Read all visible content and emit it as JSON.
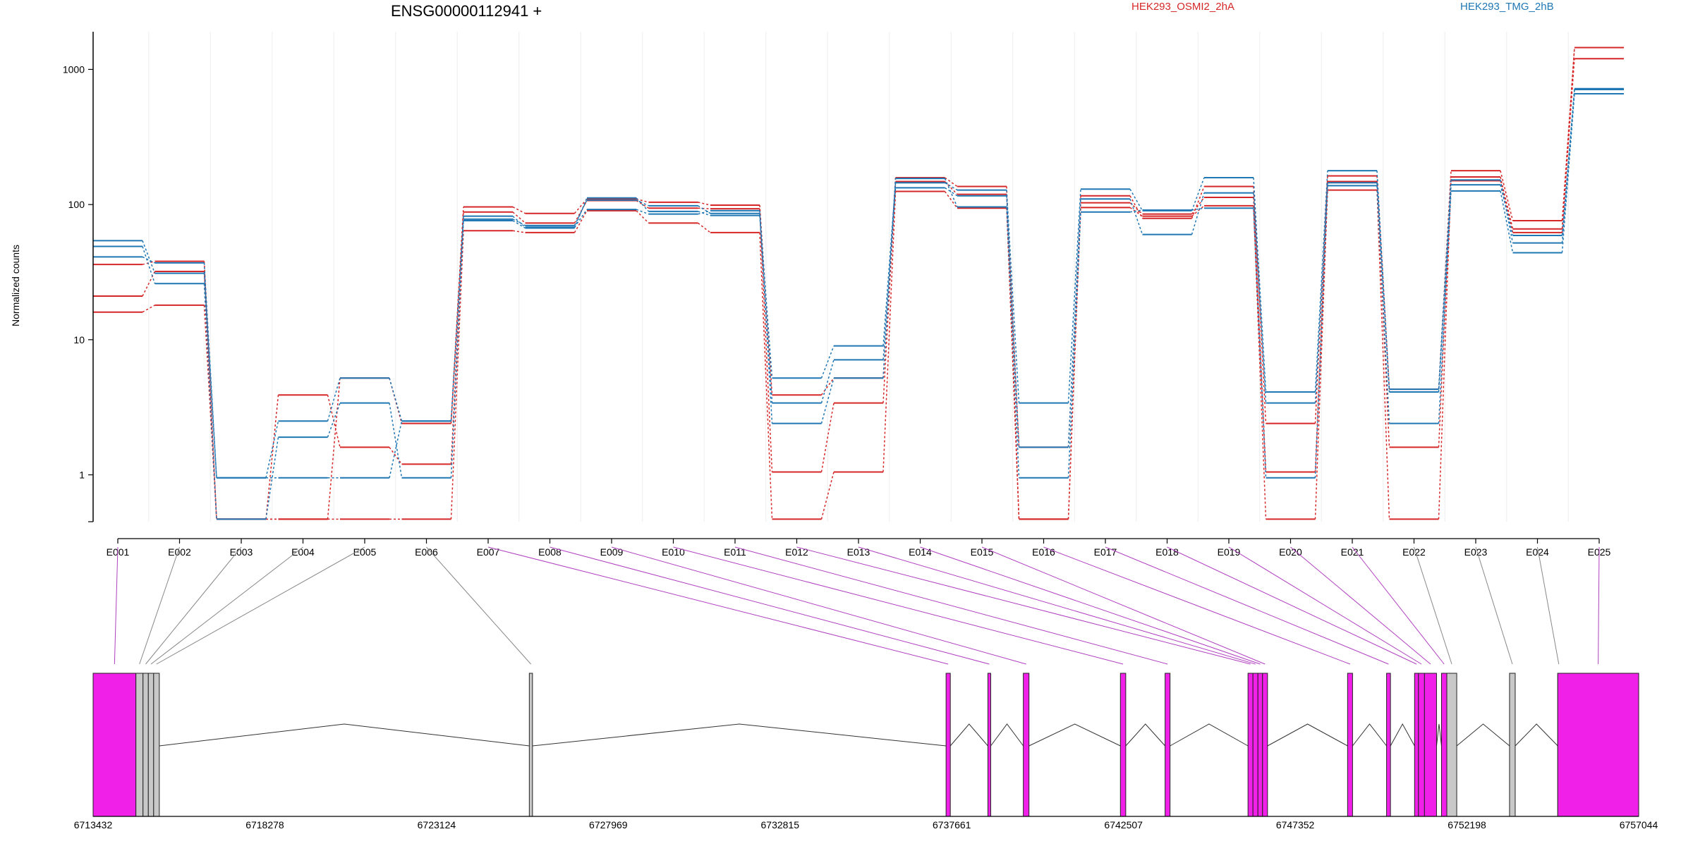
{
  "chart_data": {
    "type": "line",
    "title": "ENSG00000112941 +",
    "ylabel": "Normalized counts",
    "yscale": "log",
    "ylim": [
      0.45,
      1900
    ],
    "yticks": [
      "1",
      "10",
      "100",
      "1000"
    ],
    "legend": [
      {
        "name": "HEK293_OSMI2_2hA",
        "color": "#d62728",
        "placement": "top-center"
      },
      {
        "name": "HEK293_TMG_2hB",
        "color": "#1f77b4",
        "placement": "top-right"
      }
    ],
    "grid": "vertical-light",
    "categories": [
      "E001",
      "E002",
      "E003",
      "E004",
      "E005",
      "E006",
      "E007",
      "E008",
      "E009",
      "E010",
      "E011",
      "E012",
      "E013",
      "E014",
      "E015",
      "E016",
      "E017",
      "E018",
      "E019",
      "E020",
      "E021",
      "E022",
      "E023",
      "E024",
      "E025"
    ],
    "series": [
      {
        "group": "red",
        "color": "#d62728",
        "values": [
          36,
          38,
          0.47,
          0.47,
          5.2,
          2.4,
          96,
          86,
          110,
          104,
          99,
          3.9,
          5.2,
          158,
          136,
          0.47,
          116,
          79,
          136,
          2.4,
          163,
          4.3,
          178,
          76,
          1450
        ]
      },
      {
        "group": "red",
        "color": "#d62728",
        "values": [
          21,
          32,
          0.47,
          3.9,
          1.6,
          1.2,
          88,
          73,
          107,
          94,
          93,
          1.05,
          3.4,
          148,
          119,
          1.6,
          103,
          85,
          113,
          1.05,
          148,
          1.6,
          160,
          66,
          1200
        ]
      },
      {
        "group": "red",
        "color": "#d62728",
        "values": [
          16,
          18,
          0.47,
          0.47,
          0.47,
          0.47,
          64,
          62,
          90,
          73,
          62,
          0.47,
          1.05,
          125,
          94,
          0.47,
          95,
          82,
          98,
          0.47,
          128,
          0.47,
          150,
          62,
          1450
        ]
      },
      {
        "group": "blue",
        "color": "#1f77b4",
        "values": [
          54,
          31,
          0.95,
          2.5,
          5.2,
          2.5,
          78,
          70,
          108,
          98,
          86,
          5.2,
          9.0,
          145,
          128,
          3.4,
          130,
          90,
          158,
          4.1,
          178,
          4.1,
          140,
          59,
          710
        ]
      },
      {
        "group": "blue",
        "color": "#1f77b4",
        "values": [
          49,
          26,
          0.47,
          1.9,
          3.4,
          0.95,
          76,
          67,
          112,
          89,
          83,
          3.4,
          7.1,
          133,
          116,
          1.6,
          110,
          60,
          122,
          3.4,
          138,
          2.4,
          126,
          44,
          660
        ]
      },
      {
        "group": "blue",
        "color": "#1f77b4",
        "values": [
          41,
          37,
          0.95,
          0.95,
          0.95,
          2.5,
          82,
          68,
          92,
          85,
          90,
          2.4,
          5.2,
          156,
          96,
          0.95,
          88,
          91,
          94,
          0.95,
          145,
          4.3,
          152,
          52,
          720
        ]
      }
    ],
    "gene_model": {
      "coordinates": [
        "6713432",
        "6718278",
        "6723124",
        "6727969",
        "6732815",
        "6737661",
        "6742507",
        "6747352",
        "6752198",
        "6757044"
      ],
      "range": [
        6713432,
        6757044
      ],
      "exon_color_significant": "#f020e8",
      "exon_color_other": "#c8c8c8",
      "exons": [
        {
          "id": "E001",
          "start": 6713432,
          "end": 6714640,
          "significant": true
        },
        {
          "id": "E002",
          "start": 6714640,
          "end": 6714840,
          "significant": false
        },
        {
          "id": "E003",
          "start": 6714840,
          "end": 6714990,
          "significant": false
        },
        {
          "id": "E004",
          "start": 6714990,
          "end": 6715140,
          "significant": false
        },
        {
          "id": "E005",
          "start": 6715140,
          "end": 6715300,
          "significant": false
        },
        {
          "id": "E006",
          "start": 6725740,
          "end": 6725830,
          "significant": false
        },
        {
          "id": "E007",
          "start": 6737500,
          "end": 6737620,
          "significant": true
        },
        {
          "id": "E008",
          "start": 6738680,
          "end": 6738760,
          "significant": true
        },
        {
          "id": "E009",
          "start": 6739680,
          "end": 6739840,
          "significant": true
        },
        {
          "id": "E010",
          "start": 6742420,
          "end": 6742570,
          "significant": true
        },
        {
          "id": "E011",
          "start": 6743680,
          "end": 6743820,
          "significant": true
        },
        {
          "id": "E012",
          "start": 6746020,
          "end": 6746160,
          "significant": true
        },
        {
          "id": "E013",
          "start": 6746160,
          "end": 6746300,
          "significant": true
        },
        {
          "id": "E014",
          "start": 6746300,
          "end": 6746430,
          "significant": true
        },
        {
          "id": "E015",
          "start": 6746430,
          "end": 6746570,
          "significant": true
        },
        {
          "id": "E016",
          "start": 6748830,
          "end": 6748970,
          "significant": true
        },
        {
          "id": "E017",
          "start": 6749930,
          "end": 6750040,
          "significant": true
        },
        {
          "id": "E018",
          "start": 6750720,
          "end": 6750830,
          "significant": true
        },
        {
          "id": "E019",
          "start": 6750830,
          "end": 6751000,
          "significant": true
        },
        {
          "id": "E020",
          "start": 6751000,
          "end": 6751340,
          "significant": true
        },
        {
          "id": "E021",
          "start": 6751480,
          "end": 6751630,
          "significant": true
        },
        {
          "id": "E022",
          "start": 6751630,
          "end": 6751910,
          "significant": false
        },
        {
          "id": "E023",
          "start": 6753400,
          "end": 6753560,
          "significant": false
        },
        {
          "id": "E024",
          "start": 6754760,
          "end": 6754760,
          "significant": false
        },
        {
          "id": "E025",
          "start": 6754760,
          "end": 6757044,
          "significant": true
        }
      ]
    }
  }
}
